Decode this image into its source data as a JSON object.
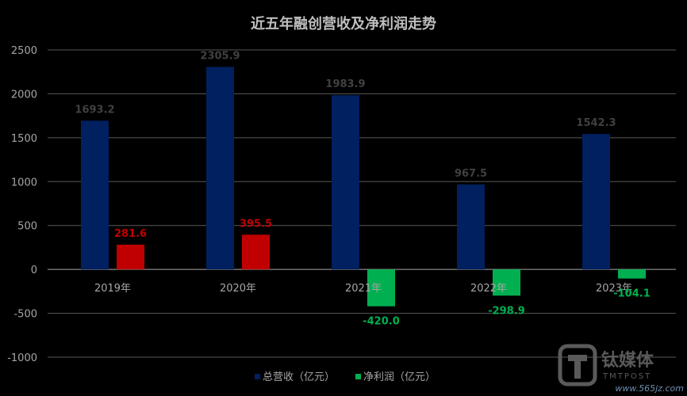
{
  "chart_data": {
    "type": "bar",
    "title": "近五年融创营收及净利润走势",
    "categories": [
      "2019年",
      "2020年",
      "2021年",
      "2022年",
      "2023年"
    ],
    "series": [
      {
        "name": "总营收（亿元）",
        "color": "#002060",
        "values": [
          1693.2,
          2305.9,
          1983.9,
          967.5,
          1542.3
        ],
        "labels": [
          "1693.2",
          "2305.9",
          "1983.9",
          "967.5",
          "1542.3"
        ]
      },
      {
        "name": "净利润（亿元）",
        "color_positive": "#C00000",
        "color_negative": "#00B050",
        "values": [
          281.6,
          395.5,
          -420.0,
          -298.9,
          -104.1
        ],
        "labels": [
          "281.6",
          "395.5",
          "-420.0",
          "-298.9",
          "-104.1"
        ]
      }
    ],
    "ylim": [
      -1000,
      2500
    ],
    "yticks": [
      -1000,
      -500,
      0,
      500,
      1000,
      1500,
      2000,
      2500
    ],
    "grid": true,
    "legend_position": "bottom",
    "label_colors": {
      "revenue": "#404040",
      "profit_positive": "#C00000",
      "profit_negative": "#00B050"
    }
  },
  "watermark": {
    "brand": "钛媒体",
    "brand_en": "TMTPOST",
    "url": "www.565jz.com"
  }
}
